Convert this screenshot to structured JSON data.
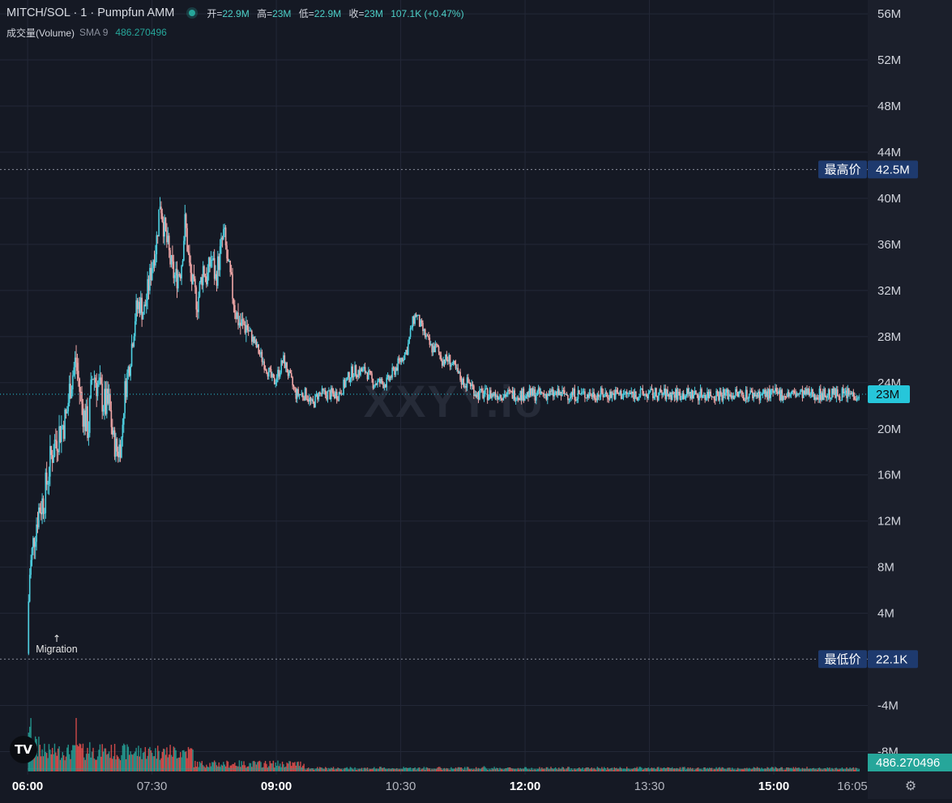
{
  "legend": {
    "symbol": "MITCH/SOL · 1 · Pumpfun AMM",
    "open_label": "开=",
    "open": "22.9M",
    "high_label": "高=",
    "high": "23M",
    "low_label": "低=",
    "low": "22.9M",
    "close_label": "收=",
    "close": "23M",
    "change": "107.1K (+0.47%)",
    "volume_label": "成交量(Volume)",
    "sma_label": "SMA 9",
    "sma_value": "486.270496"
  },
  "watermark": "XXYY.io",
  "annotations": {
    "migration": "Migration",
    "migration_arrow": "↑"
  },
  "price_markers": {
    "high_label": "最高价",
    "high_value": "42.5M",
    "low_label": "最低价",
    "low_value": "22.1K",
    "last_value": "23M",
    "volume_value": "486.270496"
  },
  "icons": {
    "logo": "tradingview-logo-icon",
    "settings": "gear-icon"
  },
  "logo_text": "TV",
  "chart_data": {
    "type": "candlestick",
    "title": "MITCH/SOL · 1 · Pumpfun AMM",
    "y_unit": "M",
    "y_ticks": [
      56,
      52,
      48,
      44,
      40,
      36,
      32,
      28,
      24,
      20,
      16,
      12,
      8,
      4,
      -4,
      -8
    ],
    "y_tick_labels": [
      "56M",
      "52M",
      "48M",
      "44M",
      "40M",
      "36M",
      "32M",
      "28M",
      "24M",
      "20M",
      "16M",
      "12M",
      "8M",
      "4M",
      "-4M",
      "-8M"
    ],
    "ylim": [
      -10,
      57.2
    ],
    "x_ticks": [
      "06:00",
      "07:30",
      "09:00",
      "10:30",
      "12:00",
      "13:30",
      "15:00",
      "16:05"
    ],
    "x_tick_bold": [
      true,
      false,
      true,
      false,
      true,
      false,
      true,
      false
    ],
    "x_tick_minutes": [
      360,
      450,
      540,
      630,
      720,
      810,
      900,
      965
    ],
    "xlim_minutes": [
      340,
      968
    ],
    "highest": 42.5,
    "lowest": 0.022,
    "last": 23.0,
    "migration_minute": 360,
    "price_path": [
      [
        360,
        0.5
      ],
      [
        361,
        7
      ],
      [
        363,
        9
      ],
      [
        365,
        11
      ],
      [
        368,
        13
      ],
      [
        372,
        14
      ],
      [
        376,
        17
      ],
      [
        380,
        19
      ],
      [
        384,
        20
      ],
      [
        388,
        21
      ],
      [
        391,
        24
      ],
      [
        395,
        26
      ],
      [
        398,
        23
      ],
      [
        401,
        21
      ],
      [
        404,
        20
      ],
      [
        407,
        25
      ],
      [
        410,
        24
      ],
      [
        413,
        23
      ],
      [
        416,
        22
      ],
      [
        419,
        22
      ],
      [
        422,
        19
      ],
      [
        425,
        18
      ],
      [
        428,
        19
      ],
      [
        430,
        23
      ],
      [
        434,
        26
      ],
      [
        438,
        30
      ],
      [
        441,
        31
      ],
      [
        444,
        30
      ],
      [
        447,
        32
      ],
      [
        451,
        35
      ],
      [
        453,
        36
      ],
      [
        456,
        40
      ],
      [
        458,
        38
      ],
      [
        461,
        36
      ],
      [
        464,
        34
      ],
      [
        467,
        33
      ],
      [
        471,
        34
      ],
      [
        474,
        38
      ],
      [
        477,
        34
      ],
      [
        480,
        32
      ],
      [
        483,
        31
      ],
      [
        487,
        34
      ],
      [
        490,
        33
      ],
      [
        493,
        35
      ],
      [
        496,
        33
      ],
      [
        499,
        35
      ],
      [
        502,
        37
      ],
      [
        505,
        34
      ],
      [
        508,
        32
      ],
      [
        511,
        30
      ],
      [
        514,
        29
      ],
      [
        518,
        29
      ],
      [
        522,
        28
      ],
      [
        526,
        27
      ],
      [
        530,
        26
      ],
      [
        534,
        25
      ],
      [
        538,
        24
      ],
      [
        542,
        25
      ],
      [
        545,
        26
      ],
      [
        548,
        25
      ],
      [
        551,
        24
      ],
      [
        554,
        23
      ],
      [
        558,
        23
      ],
      [
        562,
        23
      ],
      [
        566,
        22
      ],
      [
        570,
        23
      ],
      [
        575,
        23
      ],
      [
        580,
        23
      ],
      [
        585,
        23
      ],
      [
        590,
        24
      ],
      [
        595,
        25
      ],
      [
        600,
        25
      ],
      [
        605,
        25
      ],
      [
        610,
        24
      ],
      [
        615,
        24
      ],
      [
        620,
        24
      ],
      [
        625,
        25
      ],
      [
        630,
        26
      ],
      [
        635,
        27
      ],
      [
        638,
        29
      ],
      [
        641,
        30
      ],
      [
        644,
        29
      ],
      [
        648,
        28
      ],
      [
        652,
        27
      ],
      [
        656,
        27
      ],
      [
        660,
        26
      ],
      [
        665,
        26
      ],
      [
        670,
        25
      ],
      [
        675,
        24
      ],
      [
        680,
        24
      ],
      [
        685,
        23
      ],
      [
        690,
        23
      ],
      [
        695,
        23
      ],
      [
        700,
        23
      ]
    ],
    "volume": {
      "name": "Volume",
      "sma_period": 9,
      "spikes": [
        [
          360,
          1.0
        ],
        [
          362,
          0.8
        ],
        [
          366,
          0.55
        ],
        [
          368,
          0.4
        ],
        [
          372,
          0.35
        ],
        [
          376,
          0.3
        ],
        [
          383,
          0.25
        ],
        [
          388,
          0.2
        ],
        [
          395,
          0.65
        ],
        [
          398,
          0.45
        ],
        [
          405,
          0.32
        ],
        [
          415,
          0.25
        ],
        [
          425,
          0.22
        ],
        [
          433,
          0.3
        ],
        [
          440,
          0.28
        ],
        [
          447,
          0.2
        ],
        [
          455,
          0.22
        ],
        [
          460,
          0.18
        ],
        [
          470,
          0.15
        ],
        [
          478,
          0.2
        ],
        [
          510,
          0.1
        ],
        [
          540,
          0.06
        ],
        [
          590,
          0.05
        ],
        [
          640,
          0.06
        ],
        [
          690,
          0.08
        ]
      ]
    },
    "colors": {
      "up": "#26a69a",
      "down": "#ef5350",
      "candle_up": "#4dd0e1",
      "candle_down": "#f0a7a7",
      "grid": "#232837",
      "bg": "#151924",
      "axis_bg": "#1b1f2b",
      "last_bg": "#26c6da",
      "marker_bg": "#1e3a6e",
      "volume_bg": "#26a69a"
    }
  }
}
